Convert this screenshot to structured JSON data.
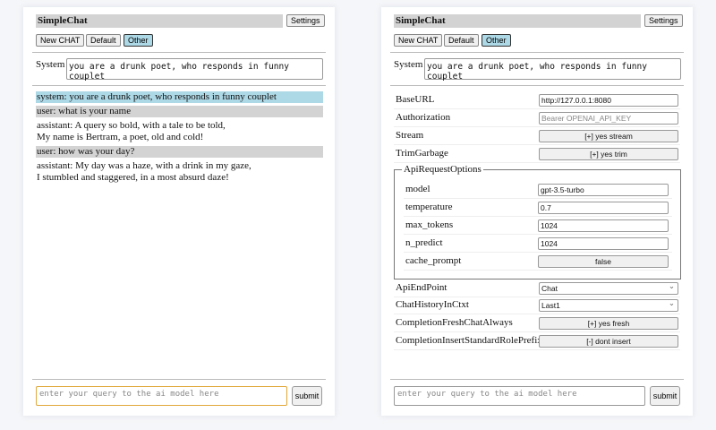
{
  "app": {
    "title": "SimpleChat",
    "settings_label": "Settings",
    "buttons": [
      "New CHAT",
      "Default",
      "Other"
    ],
    "active_button": "Other",
    "system_label": "System",
    "system_prompt": "you are a drunk poet, who responds in funny couplet",
    "query_placeholder": "enter your query to the ai model here",
    "submit_label": "submit"
  },
  "chat": [
    {
      "role": "system",
      "text": "system: you are a drunk poet, who responds in funny couplet"
    },
    {
      "role": "user",
      "text": "user: what is your name"
    },
    {
      "role": "assistant",
      "text": "assistant: A query so bold, with a tale to be told,\nMy name is Bertram, a poet, old and cold!"
    },
    {
      "role": "user",
      "text": "user: how was your day?"
    },
    {
      "role": "assistant",
      "text": "assistant: My day was a haze, with a drink in my gaze,\nI stumbled and staggered, in a most absurd daze!"
    }
  ],
  "settings": {
    "baseurl": {
      "label": "BaseURL",
      "value": "http://127.0.0.1:8080"
    },
    "authorization": {
      "label": "Authorization",
      "placeholder": "Bearer OPENAI_API_KEY"
    },
    "stream": {
      "label": "Stream",
      "value": "[+] yes stream"
    },
    "trim": {
      "label": "TrimGarbage",
      "value": "[+] yes trim"
    },
    "api_options": {
      "legend": "ApiRequestOptions",
      "model": {
        "label": "model",
        "value": "gpt-3.5-turbo"
      },
      "temperature": {
        "label": "temperature",
        "value": "0.7"
      },
      "max_tokens": {
        "label": "max_tokens",
        "value": "1024"
      },
      "n_predict": {
        "label": "n_predict",
        "value": "1024"
      },
      "cache_prompt": {
        "label": "cache_prompt",
        "value": "false"
      }
    },
    "endpoint": {
      "label": "ApiEndPoint",
      "value": "Chat"
    },
    "history": {
      "label": "ChatHistoryInCtxt",
      "value": "Last1"
    },
    "fresh": {
      "label": "CompletionFreshChatAlways",
      "value": "[+] yes fresh"
    },
    "prefix": {
      "label": "CompletionInsertStandardRolePrefix",
      "value": "[-] dont insert"
    }
  }
}
